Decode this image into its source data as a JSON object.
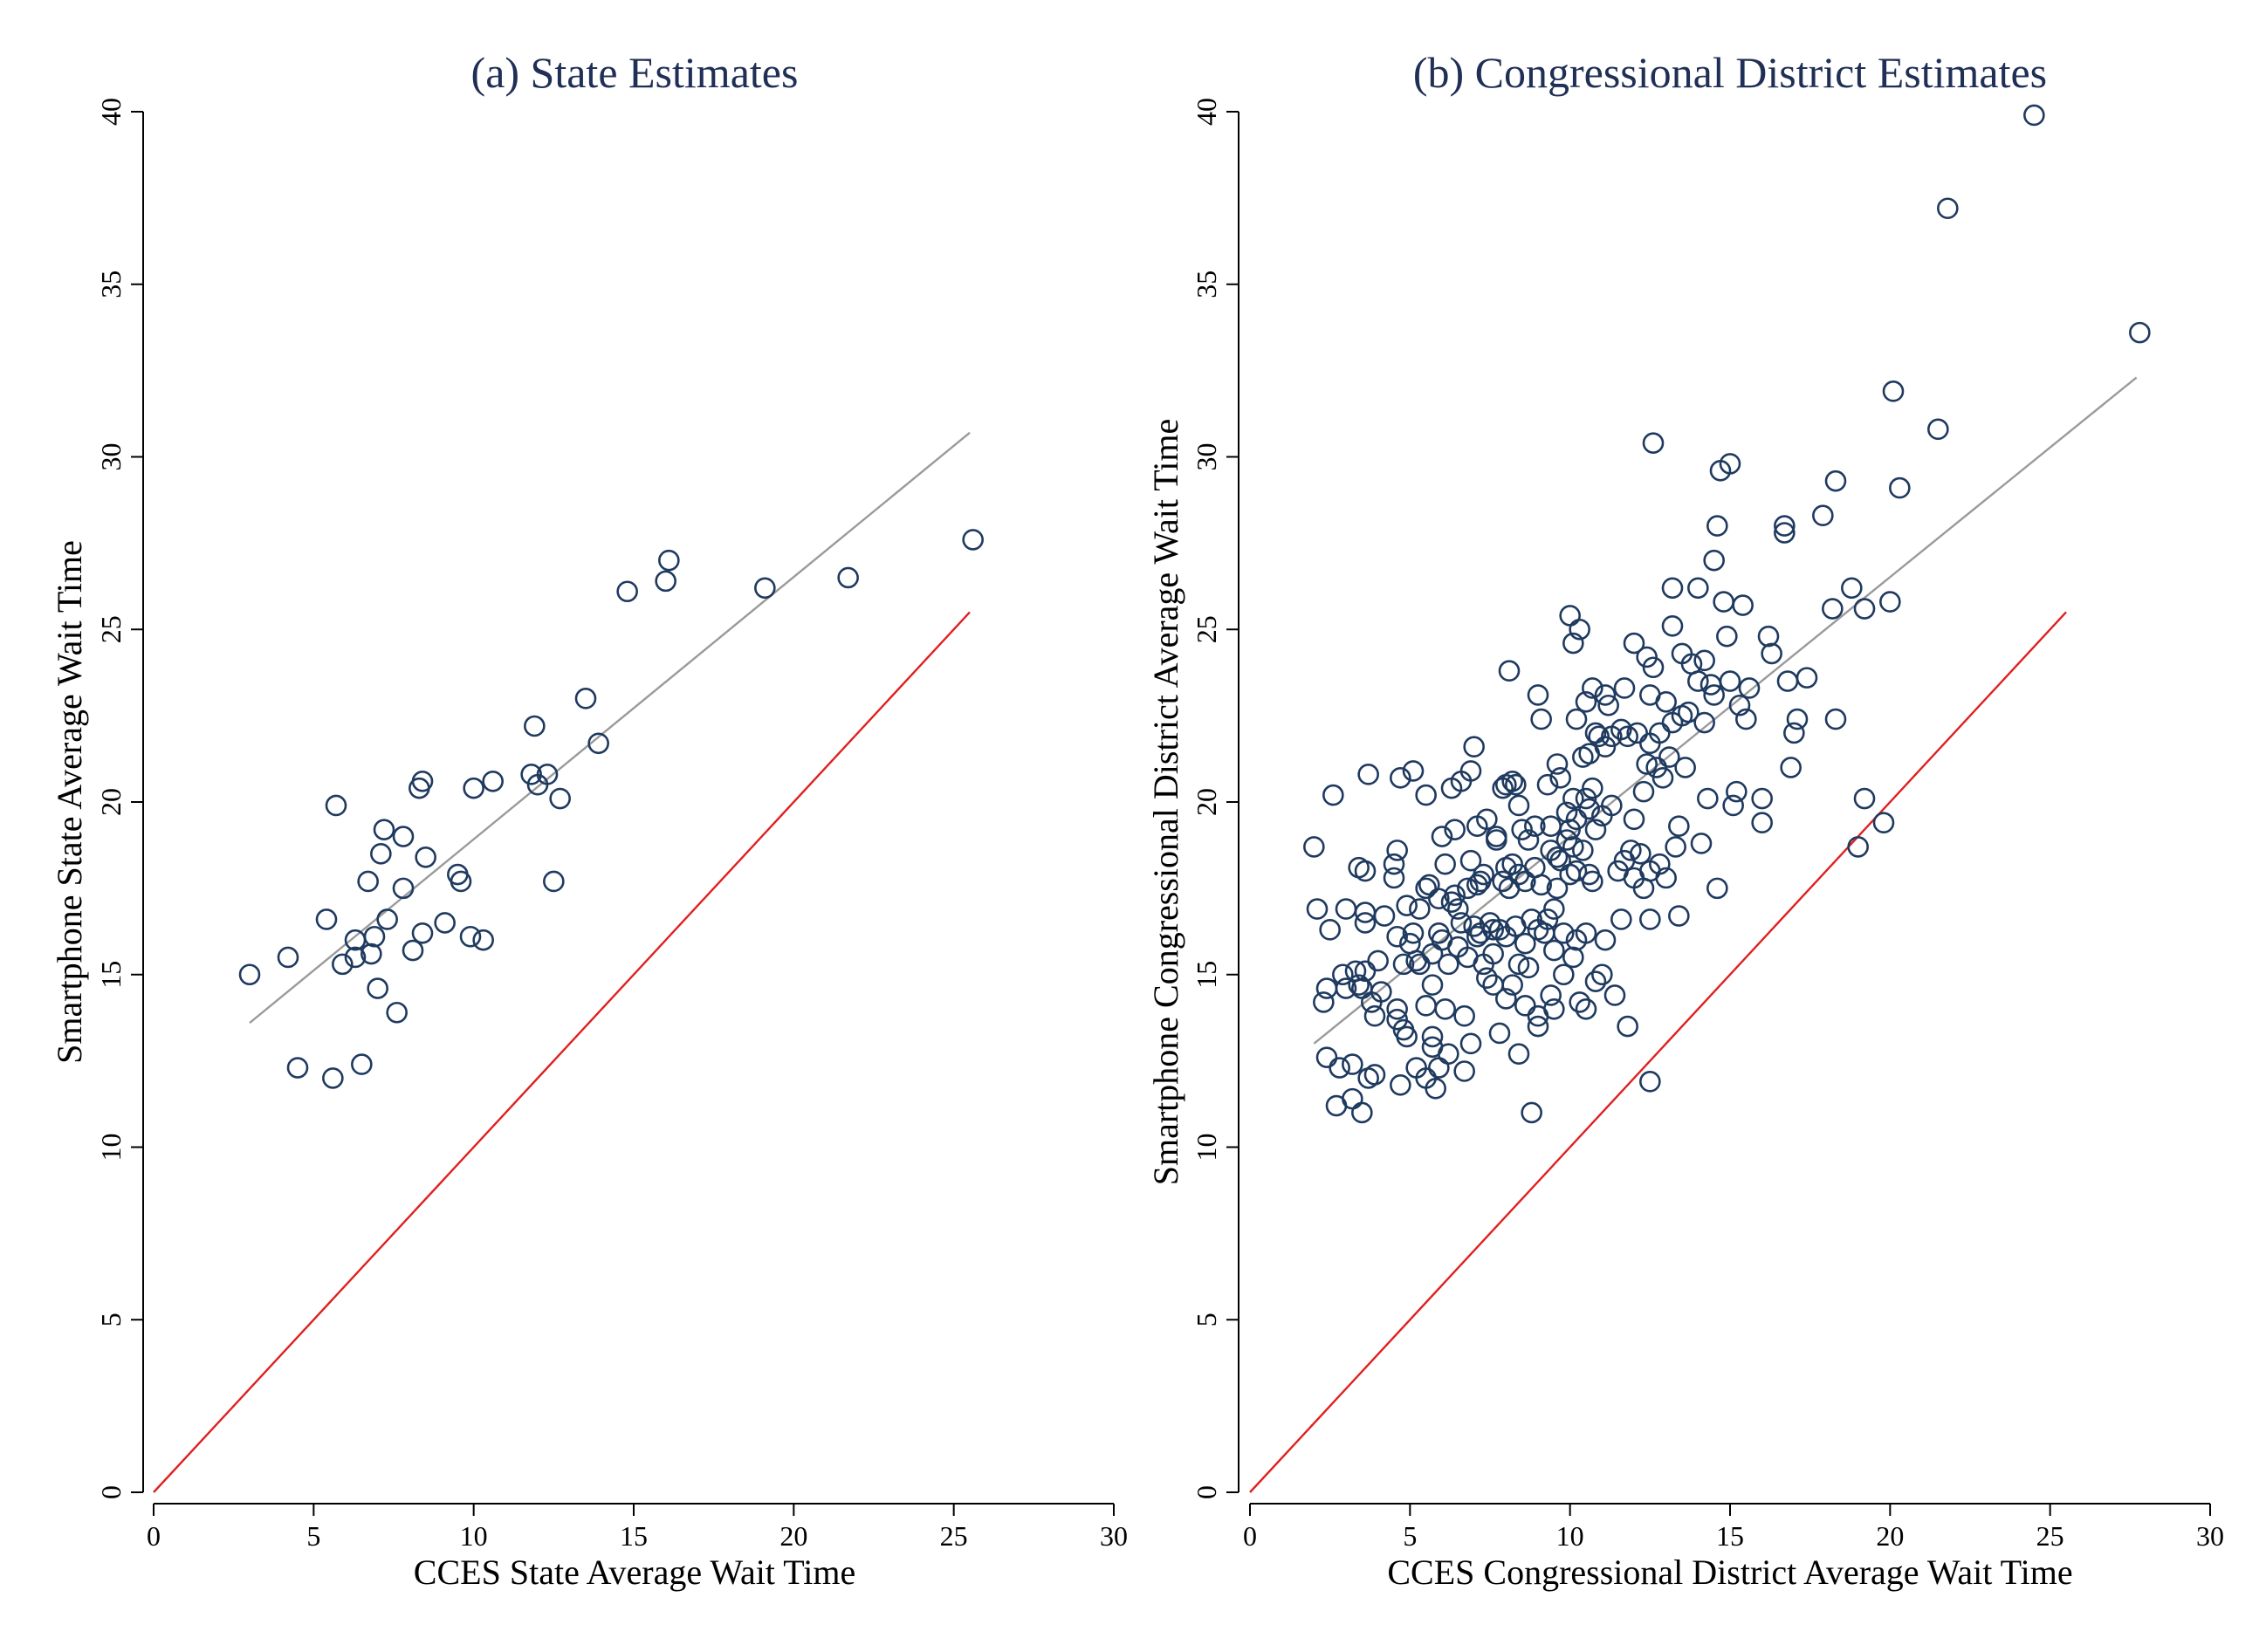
{
  "colors": {
    "marker": "#1f3a5f",
    "fit_line": "#9a9a9a",
    "reference_line": "#e02020",
    "title": "#1f2f55"
  },
  "chart_data": [
    {
      "type": "scatter",
      "title": "(a) State Estimates",
      "xlabel": "CCES State Average Wait Time",
      "ylabel": "Smartphone State Average Wait Time",
      "xlim": [
        0,
        30
      ],
      "ylim": [
        0,
        40
      ],
      "xticks": [
        0,
        5,
        10,
        15,
        20,
        25,
        30
      ],
      "yticks": [
        0,
        5,
        10,
        15,
        20,
        25,
        30,
        35,
        40
      ],
      "grid": false,
      "marker": "hollow circle",
      "fit_line": [
        [
          3.0,
          13.6
        ],
        [
          25.5,
          30.7
        ]
      ],
      "reference_line": [
        [
          0,
          0
        ],
        [
          25.5,
          25.5
        ]
      ],
      "points": [
        [
          3.0,
          15.0
        ],
        [
          4.2,
          15.5
        ],
        [
          4.5,
          12.3
        ],
        [
          5.4,
          16.6
        ],
        [
          5.6,
          12.0
        ],
        [
          5.7,
          19.9
        ],
        [
          5.9,
          15.3
        ],
        [
          6.3,
          16.0
        ],
        [
          6.3,
          15.5
        ],
        [
          6.5,
          12.4
        ],
        [
          6.7,
          17.7
        ],
        [
          6.8,
          15.6
        ],
        [
          6.9,
          16.1
        ],
        [
          7.0,
          14.6
        ],
        [
          7.1,
          18.5
        ],
        [
          7.2,
          19.2
        ],
        [
          7.3,
          16.6
        ],
        [
          7.6,
          13.9
        ],
        [
          7.8,
          19.0
        ],
        [
          7.8,
          17.5
        ],
        [
          8.1,
          15.7
        ],
        [
          8.3,
          20.4
        ],
        [
          8.4,
          20.6
        ],
        [
          8.4,
          16.2
        ],
        [
          8.5,
          18.4
        ],
        [
          9.1,
          16.5
        ],
        [
          9.5,
          17.9
        ],
        [
          9.6,
          17.7
        ],
        [
          9.9,
          16.1
        ],
        [
          10.0,
          20.4
        ],
        [
          10.3,
          16.0
        ],
        [
          10.6,
          20.6
        ],
        [
          11.8,
          20.8
        ],
        [
          11.9,
          22.2
        ],
        [
          12.0,
          20.5
        ],
        [
          12.3,
          20.8
        ],
        [
          12.5,
          17.7
        ],
        [
          12.7,
          20.1
        ],
        [
          13.5,
          23.0
        ],
        [
          13.9,
          21.7
        ],
        [
          14.8,
          26.1
        ],
        [
          16.0,
          26.4
        ],
        [
          16.1,
          27.0
        ],
        [
          19.1,
          26.2
        ],
        [
          21.7,
          26.5
        ],
        [
          25.6,
          27.6
        ]
      ]
    },
    {
      "type": "scatter",
      "title": "(b) Congressional District Estimates",
      "xlabel": "CCES Congressional District Average Wait Time",
      "ylabel": "Smartphone Congressional District Average Wait Time",
      "xlim": [
        0,
        30
      ],
      "ylim": [
        0,
        40
      ],
      "xticks": [
        0,
        5,
        10,
        15,
        20,
        25,
        30
      ],
      "yticks": [
        0,
        5,
        10,
        15,
        20,
        25,
        30,
        35,
        40
      ],
      "grid": false,
      "marker": "hollow circle",
      "fit_line": [
        [
          2.0,
          13.0
        ],
        [
          27.7,
          32.3
        ]
      ],
      "reference_line": [
        [
          0,
          0
        ],
        [
          25.5,
          25.5
        ]
      ],
      "points": [
        [
          2.0,
          18.7
        ],
        [
          2.1,
          16.9
        ],
        [
          2.3,
          14.2
        ],
        [
          2.4,
          14.6
        ],
        [
          2.4,
          12.6
        ],
        [
          2.5,
          16.3
        ],
        [
          2.6,
          20.2
        ],
        [
          2.7,
          11.2
        ],
        [
          2.8,
          12.3
        ],
        [
          2.9,
          15.0
        ],
        [
          3.0,
          14.6
        ],
        [
          3.0,
          16.9
        ],
        [
          3.2,
          11.4
        ],
        [
          3.2,
          12.4
        ],
        [
          3.3,
          15.1
        ],
        [
          3.4,
          14.7
        ],
        [
          3.4,
          18.1
        ],
        [
          3.5,
          11.0
        ],
        [
          3.5,
          14.6
        ],
        [
          3.6,
          15.1
        ],
        [
          3.6,
          16.5
        ],
        [
          3.6,
          16.8
        ],
        [
          3.6,
          18.0
        ],
        [
          3.7,
          20.8
        ],
        [
          3.7,
          12.0
        ],
        [
          3.8,
          14.2
        ],
        [
          3.9,
          13.8
        ],
        [
          3.9,
          12.1
        ],
        [
          4.0,
          15.4
        ],
        [
          4.1,
          14.5
        ],
        [
          4.2,
          16.7
        ],
        [
          4.5,
          17.8
        ],
        [
          4.5,
          18.2
        ],
        [
          4.6,
          18.6
        ],
        [
          4.6,
          16.1
        ],
        [
          4.6,
          14.0
        ],
        [
          4.6,
          13.7
        ],
        [
          4.7,
          20.7
        ],
        [
          4.7,
          11.8
        ],
        [
          4.8,
          15.3
        ],
        [
          4.8,
          13.4
        ],
        [
          4.9,
          17.0
        ],
        [
          4.9,
          13.2
        ],
        [
          5.0,
          15.9
        ],
        [
          5.1,
          16.2
        ],
        [
          5.1,
          20.9
        ],
        [
          5.2,
          12.3
        ],
        [
          5.2,
          15.4
        ],
        [
          5.3,
          15.3
        ],
        [
          5.3,
          16.9
        ],
        [
          5.5,
          20.2
        ],
        [
          5.5,
          17.5
        ],
        [
          5.5,
          14.1
        ],
        [
          5.5,
          12.0
        ],
        [
          5.6,
          17.6
        ],
        [
          5.7,
          15.6
        ],
        [
          5.7,
          13.2
        ],
        [
          5.7,
          12.9
        ],
        [
          5.7,
          14.7
        ],
        [
          5.8,
          11.7
        ],
        [
          5.9,
          16.2
        ],
        [
          5.9,
          12.3
        ],
        [
          5.9,
          17.2
        ],
        [
          6.0,
          16.0
        ],
        [
          6.0,
          19.0
        ],
        [
          6.1,
          18.2
        ],
        [
          6.1,
          14.0
        ],
        [
          6.2,
          15.3
        ],
        [
          6.2,
          12.7
        ],
        [
          6.3,
          17.1
        ],
        [
          6.3,
          20.4
        ],
        [
          6.4,
          19.2
        ],
        [
          6.4,
          17.3
        ],
        [
          6.5,
          16.9
        ],
        [
          6.5,
          15.8
        ],
        [
          6.6,
          20.6
        ],
        [
          6.6,
          16.5
        ],
        [
          6.7,
          13.8
        ],
        [
          6.7,
          12.2
        ],
        [
          6.8,
          15.5
        ],
        [
          6.8,
          17.5
        ],
        [
          6.9,
          20.9
        ],
        [
          6.9,
          18.3
        ],
        [
          6.9,
          13.0
        ],
        [
          7.0,
          21.6
        ],
        [
          7.0,
          16.4
        ],
        [
          7.1,
          19.3
        ],
        [
          7.1,
          17.6
        ],
        [
          7.1,
          16.1
        ],
        [
          7.2,
          16.2
        ],
        [
          7.2,
          17.7
        ],
        [
          7.3,
          17.9
        ],
        [
          7.3,
          15.3
        ],
        [
          7.4,
          19.5
        ],
        [
          7.4,
          14.9
        ],
        [
          7.5,
          16.5
        ],
        [
          7.6,
          15.6
        ],
        [
          7.6,
          16.3
        ],
        [
          7.6,
          14.7
        ],
        [
          7.7,
          19.0
        ],
        [
          7.7,
          18.9
        ],
        [
          7.8,
          13.3
        ],
        [
          7.8,
          16.3
        ],
        [
          7.9,
          17.7
        ],
        [
          7.9,
          20.4
        ],
        [
          8.0,
          20.5
        ],
        [
          8.0,
          18.1
        ],
        [
          8.0,
          16.1
        ],
        [
          8.0,
          14.3
        ],
        [
          8.1,
          23.8
        ],
        [
          8.1,
          17.5
        ],
        [
          8.2,
          20.6
        ],
        [
          8.2,
          18.2
        ],
        [
          8.2,
          14.7
        ],
        [
          8.3,
          20.5
        ],
        [
          8.3,
          16.4
        ],
        [
          8.4,
          19.9
        ],
        [
          8.4,
          17.9
        ],
        [
          8.4,
          15.3
        ],
        [
          8.4,
          12.7
        ],
        [
          8.5,
          19.2
        ],
        [
          8.6,
          17.7
        ],
        [
          8.6,
          15.9
        ],
        [
          8.6,
          14.1
        ],
        [
          8.7,
          18.9
        ],
        [
          8.7,
          15.2
        ],
        [
          8.8,
          11.0
        ],
        [
          8.8,
          16.6
        ],
        [
          8.9,
          19.3
        ],
        [
          8.9,
          18.1
        ],
        [
          9.0,
          23.1
        ],
        [
          9.0,
          16.3
        ],
        [
          9.0,
          13.8
        ],
        [
          9.0,
          13.5
        ],
        [
          9.1,
          22.4
        ],
        [
          9.1,
          17.6
        ],
        [
          9.2,
          16.2
        ],
        [
          9.3,
          20.5
        ],
        [
          9.3,
          16.6
        ],
        [
          9.4,
          19.3
        ],
        [
          9.4,
          18.6
        ],
        [
          9.4,
          14.4
        ],
        [
          9.5,
          16.9
        ],
        [
          9.5,
          15.7
        ],
        [
          9.5,
          14.0
        ],
        [
          9.6,
          21.1
        ],
        [
          9.6,
          18.4
        ],
        [
          9.6,
          17.5
        ],
        [
          9.7,
          20.7
        ],
        [
          9.7,
          18.3
        ],
        [
          9.8,
          16.2
        ],
        [
          9.8,
          15.0
        ],
        [
          9.9,
          18.9
        ],
        [
          9.9,
          19.7
        ],
        [
          10.0,
          25.4
        ],
        [
          10.0,
          19.2
        ],
        [
          10.0,
          17.9
        ],
        [
          10.1,
          24.6
        ],
        [
          10.1,
          20.1
        ],
        [
          10.1,
          18.7
        ],
        [
          10.1,
          15.5
        ],
        [
          10.2,
          22.4
        ],
        [
          10.2,
          19.5
        ],
        [
          10.2,
          18.0
        ],
        [
          10.2,
          16.0
        ],
        [
          10.3,
          25.0
        ],
        [
          10.3,
          14.2
        ],
        [
          10.4,
          21.3
        ],
        [
          10.4,
          18.6
        ],
        [
          10.5,
          22.9
        ],
        [
          10.5,
          20.1
        ],
        [
          10.5,
          16.2
        ],
        [
          10.5,
          14.0
        ],
        [
          10.6,
          21.4
        ],
        [
          10.6,
          19.8
        ],
        [
          10.6,
          17.9
        ],
        [
          10.7,
          23.3
        ],
        [
          10.7,
          20.4
        ],
        [
          10.7,
          17.7
        ],
        [
          10.8,
          22.0
        ],
        [
          10.8,
          19.2
        ],
        [
          10.8,
          14.8
        ],
        [
          10.9,
          21.9
        ],
        [
          11.0,
          19.6
        ],
        [
          11.0,
          15.0
        ],
        [
          11.1,
          23.1
        ],
        [
          11.1,
          21.6
        ],
        [
          11.1,
          16.0
        ],
        [
          11.2,
          22.8
        ],
        [
          11.3,
          21.9
        ],
        [
          11.3,
          19.9
        ],
        [
          11.4,
          14.4
        ],
        [
          11.5,
          18.0
        ],
        [
          11.6,
          22.1
        ],
        [
          11.6,
          16.6
        ],
        [
          11.7,
          23.3
        ],
        [
          11.7,
          18.3
        ],
        [
          11.8,
          21.9
        ],
        [
          11.8,
          13.5
        ],
        [
          11.9,
          18.6
        ],
        [
          12.0,
          24.6
        ],
        [
          12.0,
          19.5
        ],
        [
          12.0,
          17.8
        ],
        [
          12.1,
          22.0
        ],
        [
          12.2,
          18.5
        ],
        [
          12.3,
          20.3
        ],
        [
          12.3,
          17.5
        ],
        [
          12.4,
          21.1
        ],
        [
          12.4,
          24.2
        ],
        [
          12.5,
          23.1
        ],
        [
          12.5,
          21.7
        ],
        [
          12.5,
          18.0
        ],
        [
          12.5,
          16.6
        ],
        [
          12.5,
          11.9
        ],
        [
          12.6,
          30.4
        ],
        [
          12.6,
          23.9
        ],
        [
          12.7,
          21.0
        ],
        [
          12.8,
          22.0
        ],
        [
          12.8,
          18.2
        ],
        [
          12.9,
          20.7
        ],
        [
          13.0,
          22.9
        ],
        [
          13.0,
          17.8
        ],
        [
          13.1,
          21.3
        ],
        [
          13.2,
          26.2
        ],
        [
          13.2,
          25.1
        ],
        [
          13.2,
          22.3
        ],
        [
          13.3,
          18.7
        ],
        [
          13.4,
          19.3
        ],
        [
          13.4,
          16.7
        ],
        [
          13.5,
          24.3
        ],
        [
          13.5,
          22.5
        ],
        [
          13.6,
          21.0
        ],
        [
          13.7,
          22.6
        ],
        [
          13.8,
          24.0
        ],
        [
          14.0,
          26.2
        ],
        [
          14.0,
          23.5
        ],
        [
          14.1,
          18.8
        ],
        [
          14.2,
          24.1
        ],
        [
          14.2,
          22.3
        ],
        [
          14.3,
          20.1
        ],
        [
          14.4,
          23.4
        ],
        [
          14.5,
          27.0
        ],
        [
          14.5,
          23.1
        ],
        [
          14.6,
          28.0
        ],
        [
          14.6,
          17.5
        ],
        [
          14.7,
          29.6
        ],
        [
          14.8,
          25.8
        ],
        [
          14.9,
          24.8
        ],
        [
          15.0,
          29.8
        ],
        [
          15.0,
          23.5
        ],
        [
          15.1,
          19.9
        ],
        [
          15.2,
          20.3
        ],
        [
          15.3,
          22.8
        ],
        [
          15.4,
          25.7
        ],
        [
          15.5,
          22.4
        ],
        [
          15.6,
          23.3
        ],
        [
          16.0,
          19.4
        ],
        [
          16.0,
          20.1
        ],
        [
          16.2,
          24.8
        ],
        [
          16.3,
          24.3
        ],
        [
          16.7,
          27.8
        ],
        [
          16.7,
          28.0
        ],
        [
          16.8,
          23.5
        ],
        [
          16.9,
          21.0
        ],
        [
          17.0,
          22.0
        ],
        [
          17.1,
          22.4
        ],
        [
          17.4,
          23.6
        ],
        [
          17.9,
          28.3
        ],
        [
          18.2,
          25.6
        ],
        [
          18.3,
          29.3
        ],
        [
          18.3,
          22.4
        ],
        [
          18.8,
          26.2
        ],
        [
          19.0,
          18.7
        ],
        [
          19.2,
          25.6
        ],
        [
          19.2,
          20.1
        ],
        [
          19.8,
          19.4
        ],
        [
          20.0,
          25.8
        ],
        [
          20.1,
          31.9
        ],
        [
          20.3,
          29.1
        ],
        [
          21.5,
          30.8
        ],
        [
          21.8,
          37.2
        ],
        [
          24.5,
          39.9
        ],
        [
          27.8,
          33.6
        ]
      ]
    }
  ]
}
